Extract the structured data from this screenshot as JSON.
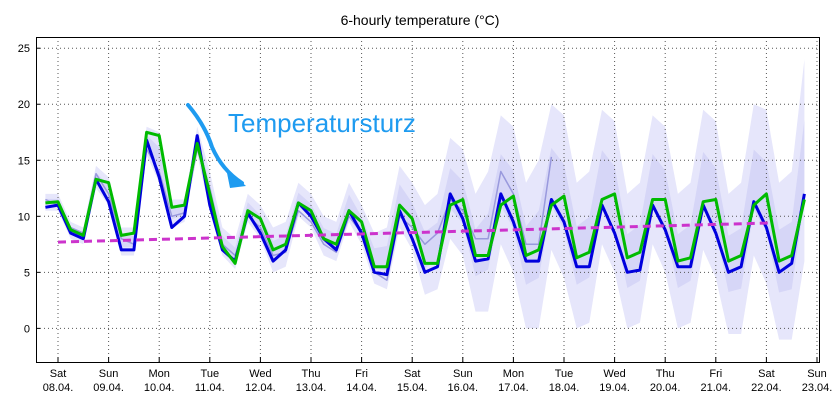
{
  "chart_data": {
    "type": "line",
    "title": "6-hourly temperature (°C)",
    "xlabel": "",
    "ylabel": "",
    "ylim": [
      -3,
      26
    ],
    "yticks": [
      0,
      5,
      10,
      15,
      20,
      25
    ],
    "grid": true,
    "annotation": "Temperatursturz",
    "x_ticks": [
      {
        "day": "Sat",
        "date": "08.04."
      },
      {
        "day": "Sun",
        "date": "09.04."
      },
      {
        "day": "Mon",
        "date": "10.04."
      },
      {
        "day": "Tue",
        "date": "11.04."
      },
      {
        "day": "Wed",
        "date": "12.04."
      },
      {
        "day": "Thu",
        "date": "13.04."
      },
      {
        "day": "Fri",
        "date": "14.04."
      },
      {
        "day": "Sat",
        "date": "15.04."
      },
      {
        "day": "Sun",
        "date": "16.04."
      },
      {
        "day": "Mon",
        "date": "17.04."
      },
      {
        "day": "Tue",
        "date": "18.04."
      },
      {
        "day": "Wed",
        "date": "19.04."
      },
      {
        "day": "Thu",
        "date": "20.04."
      },
      {
        "day": "Fri",
        "date": "21.04."
      },
      {
        "day": "Sat",
        "date": "22.04."
      },
      {
        "day": "Sun",
        "date": "23.04."
      }
    ],
    "x_start": "2023-04-07 18:00",
    "step_hours": 6,
    "series": [
      {
        "color": "#0000dd",
        "values": [
          10.8,
          11,
          8.5,
          8,
          13.3,
          11.3,
          7,
          7,
          16.8,
          13.5,
          9,
          10,
          17.2,
          11,
          7,
          6,
          10.3,
          8.5,
          6,
          7,
          11.2,
          10,
          8,
          7,
          10.5,
          8.5,
          5,
          4.8,
          10.5,
          8,
          5,
          5.5,
          12,
          9.8,
          6,
          6.2,
          12,
          9.5,
          6,
          6,
          11.5,
          9.5,
          5.5,
          5.5,
          11,
          8.5,
          5,
          5.2,
          11,
          8.8,
          5.5,
          5.5,
          11,
          8.5,
          5,
          5.5,
          11.3,
          9,
          5,
          5.8,
          12
        ]
      },
      {
        "color": "#00bb00",
        "values": [
          11.2,
          11.3,
          8.8,
          8.3,
          13.3,
          13,
          8.3,
          8.5,
          17.5,
          17.2,
          10.8,
          11,
          16.5,
          12,
          7.3,
          5.8,
          10.5,
          9.8,
          7,
          7.5,
          11.2,
          10.5,
          8,
          7.5,
          10.5,
          9.5,
          5.5,
          5.5,
          11,
          9.8,
          5.8,
          5.8,
          11,
          11.5,
          6.5,
          6.5,
          11,
          11.8,
          6.5,
          7,
          11,
          11.8,
          6.3,
          6.8,
          11.5,
          12,
          6.3,
          6.8,
          11.5,
          11.5,
          6,
          6.3,
          11.3,
          11.5,
          6,
          6.5,
          11,
          12,
          6,
          6.5,
          11.5
        ]
      },
      {
        "color": "#9999dd",
        "values": [
          11.5,
          11,
          9,
          8.5,
          13.8,
          12,
          8,
          7.5,
          16,
          14,
          10,
          10.3,
          16,
          12.5,
          7.5,
          6.5,
          10,
          9,
          6.5,
          6.8,
          10.5,
          9.5,
          7.5,
          6.8,
          10,
          8.5,
          5,
          4.3,
          10,
          9,
          7.5,
          8.5,
          11.5,
          10.5,
          8,
          8,
          14,
          12,
          7.5,
          7.5,
          15.3
        ]
      }
    ],
    "trend": {
      "color": "#cc33cc",
      "start": 7.7,
      "end": 9.4
    },
    "spread": {
      "color_outer": "#e6e6fb",
      "color_inner": "#ccccf5",
      "lower": [
        10.5,
        10.5,
        8,
        7.5,
        12.5,
        11,
        6.5,
        6.5,
        15.5,
        13,
        9,
        9.5,
        15.5,
        10.5,
        6.5,
        5.3,
        9.5,
        8,
        5,
        5.5,
        10,
        9,
        6.5,
        6,
        9.5,
        7.5,
        4,
        3.5,
        9,
        7,
        3,
        3.5,
        8,
        6.5,
        1.5,
        1.5,
        7.5,
        5,
        0,
        0,
        7,
        4.5,
        0,
        0.5,
        7.5,
        5,
        0,
        0.5,
        7.5,
        5,
        0,
        0.5,
        7,
        4.5,
        -0.5,
        -0.5,
        6.5,
        4,
        -1,
        -1,
        6
      ],
      "upper": [
        12,
        12,
        9.5,
        9,
        14.5,
        13.5,
        9,
        9,
        18,
        17.5,
        11.5,
        11.5,
        18,
        14,
        9,
        8,
        12,
        11,
        9,
        9.5,
        13,
        12,
        10,
        9.5,
        13,
        11,
        8.5,
        9,
        14.5,
        13,
        11,
        12,
        17,
        16,
        12,
        14,
        19,
        18,
        13,
        15,
        20,
        19,
        13,
        14,
        19.5,
        18.5,
        12,
        13,
        19,
        18,
        12,
        13,
        19.5,
        18.5,
        12,
        13,
        20,
        19.5,
        13,
        14,
        24
      ]
    }
  }
}
